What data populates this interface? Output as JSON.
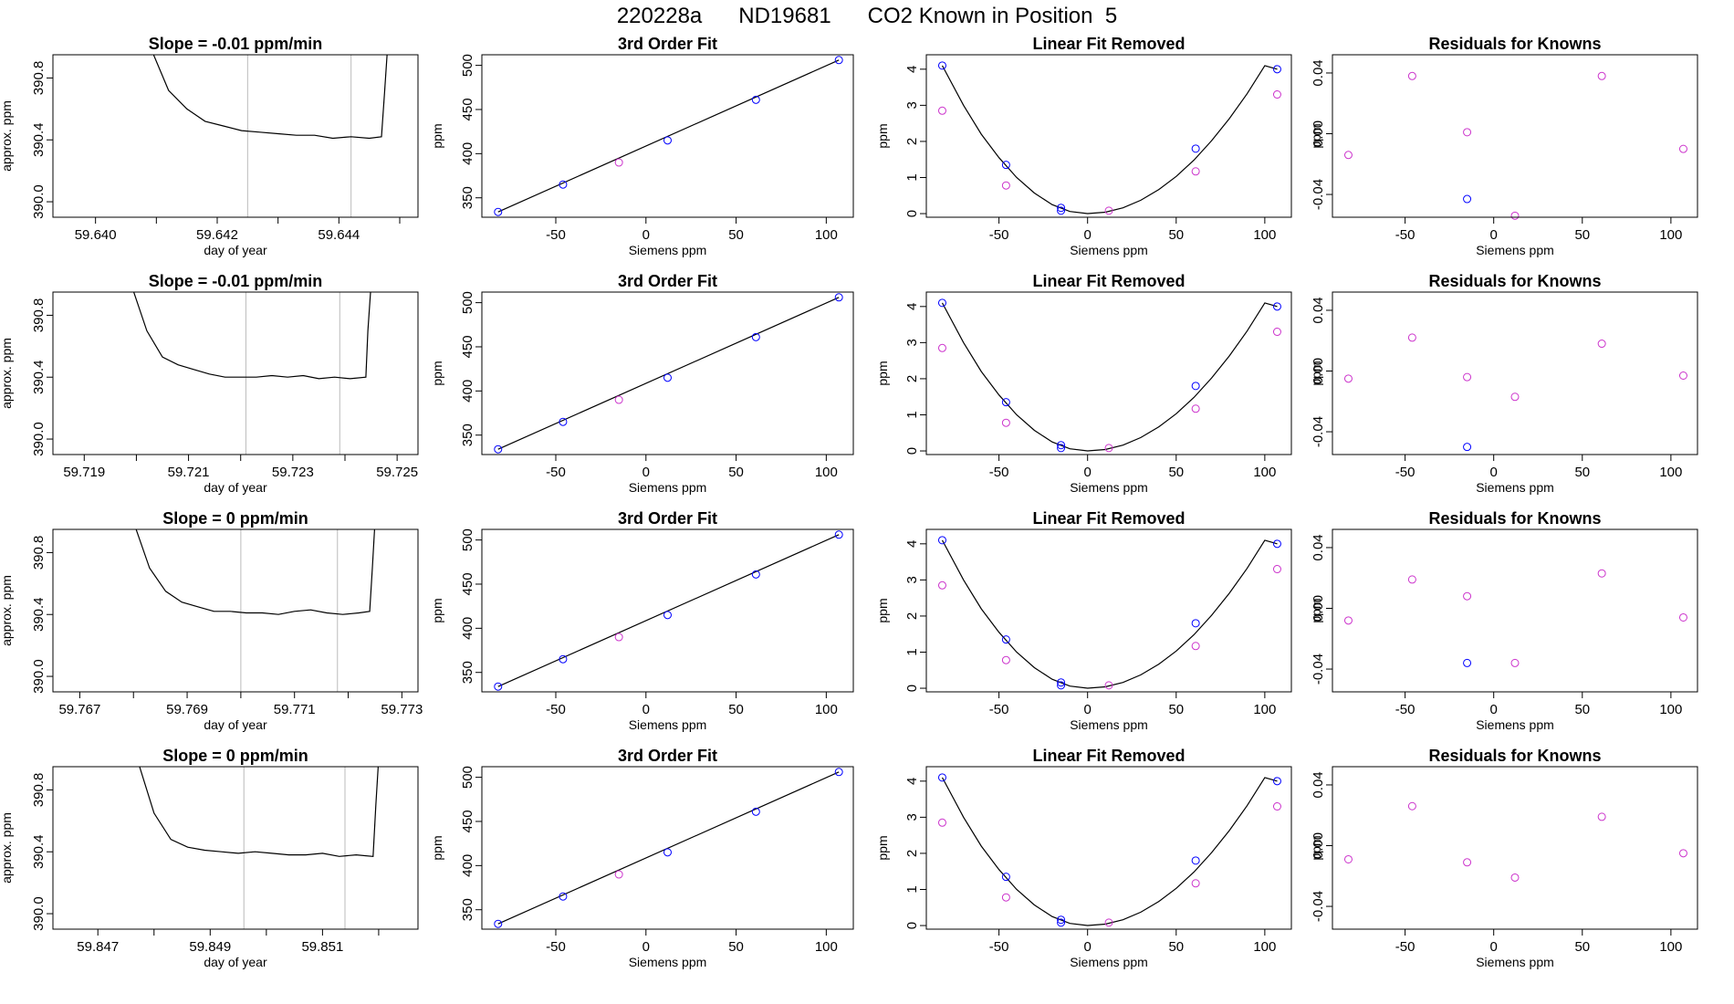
{
  "title": "220228a      ND19681      CO2 Known in Position  5",
  "labels": {
    "slope_prefix": "Slope = ",
    "slope_suffix": " ppm/min",
    "fit_title": "3rd Order Fit",
    "linear_title": "Linear Fit Removed",
    "resid_title": "Residuals for Knowns",
    "time_xlabel": "day of year",
    "time_ylabel": "approx. ppm",
    "siemens_xlabel": "Siemens ppm",
    "ppm_ylabel": "ppm"
  },
  "colors": {
    "line": "#000000",
    "known": "#0000ff",
    "unknown": "#cc33cc",
    "vline": "#bbbbbb"
  },
  "chart_data": [
    {
      "type": "line",
      "row": 0,
      "panel": "time",
      "slope": "-0.01",
      "x_range": [
        59.6393,
        59.6453
      ],
      "ylim": [
        389.9,
        390.95
      ],
      "xticks": [
        "59.640",
        "59.642",
        "59.644"
      ],
      "xtick_values": [
        59.64,
        59.642,
        59.644
      ],
      "minor_xticks": [
        59.641,
        59.643,
        59.645
      ],
      "yticks": [
        "390.0",
        "390.4",
        "390.8"
      ],
      "ytick_values": [
        390.0,
        390.4,
        390.8
      ],
      "vlines": [
        59.6425,
        59.6442
      ],
      "x": [
        59.6409,
        59.6412,
        59.6415,
        59.6418,
        59.6421,
        59.6424,
        59.6427,
        59.643,
        59.6433,
        59.6436,
        59.6439,
        59.6442,
        59.6445,
        59.6447,
        59.64475,
        59.6448
      ],
      "y": [
        391.0,
        390.72,
        390.6,
        390.52,
        390.49,
        390.46,
        390.45,
        390.44,
        390.43,
        390.43,
        390.41,
        390.42,
        390.41,
        390.42,
        390.7,
        391.0
      ]
    },
    {
      "type": "line",
      "row": 1,
      "panel": "time",
      "slope": "-0.01",
      "x_range": [
        59.7184,
        59.7254
      ],
      "ylim": [
        389.9,
        390.95
      ],
      "xticks": [
        "59.719",
        "59.721",
        "59.723",
        "59.725"
      ],
      "xtick_values": [
        59.719,
        59.721,
        59.723,
        59.725
      ],
      "minor_xticks": [
        59.72,
        59.722,
        59.724
      ],
      "yticks": [
        "390.0",
        "390.4",
        "390.8"
      ],
      "ytick_values": [
        390.0,
        390.4,
        390.8
      ],
      "vlines": [
        59.7221,
        59.7239
      ],
      "x": [
        59.7199,
        59.7202,
        59.7205,
        59.7208,
        59.7211,
        59.7214,
        59.7217,
        59.722,
        59.7223,
        59.7226,
        59.7229,
        59.7232,
        59.7235,
        59.7238,
        59.7241,
        59.7244,
        59.72444,
        59.7245
      ],
      "y": [
        391.0,
        390.7,
        390.53,
        390.48,
        390.45,
        390.42,
        390.4,
        390.4,
        390.4,
        390.41,
        390.4,
        390.41,
        390.39,
        390.4,
        390.39,
        390.4,
        390.7,
        391.0
      ]
    },
    {
      "type": "line",
      "row": 2,
      "panel": "time",
      "slope": "0",
      "x_range": [
        59.7665,
        59.7733
      ],
      "ylim": [
        389.9,
        390.95
      ],
      "xticks": [
        "59.767",
        "59.769",
        "59.771",
        "59.773"
      ],
      "xtick_values": [
        59.767,
        59.769,
        59.771,
        59.773
      ],
      "minor_xticks": [
        59.768,
        59.77,
        59.772
      ],
      "yticks": [
        "390.0",
        "390.4",
        "390.8"
      ],
      "ytick_values": [
        390.0,
        390.4,
        390.8
      ],
      "vlines": [
        59.77,
        59.7718
      ],
      "x": [
        59.768,
        59.7683,
        59.7686,
        59.7689,
        59.7692,
        59.7695,
        59.7698,
        59.7701,
        59.7704,
        59.7707,
        59.771,
        59.7713,
        59.7716,
        59.7719,
        59.7722,
        59.7724,
        59.77245,
        59.7725
      ],
      "y": [
        391.0,
        390.7,
        390.55,
        390.48,
        390.45,
        390.42,
        390.42,
        390.41,
        390.41,
        390.4,
        390.42,
        390.43,
        390.41,
        390.4,
        390.41,
        390.42,
        390.7,
        391.0
      ]
    },
    {
      "type": "line",
      "row": 3,
      "panel": "time",
      "slope": "0",
      "x_range": [
        59.8462,
        59.8527
      ],
      "ylim": [
        389.9,
        390.95
      ],
      "xticks": [
        "59.847",
        "59.849",
        "59.851"
      ],
      "xtick_values": [
        59.847,
        59.849,
        59.851
      ],
      "minor_xticks": [
        59.848,
        59.85,
        59.852
      ],
      "yticks": [
        "390.0",
        "390.4",
        "390.8"
      ],
      "ytick_values": [
        390.0,
        390.4,
        390.8
      ],
      "vlines": [
        59.8496,
        59.8514
      ],
      "x": [
        59.8477,
        59.848,
        59.8483,
        59.8486,
        59.8489,
        59.8492,
        59.8495,
        59.8498,
        59.8501,
        59.8504,
        59.8507,
        59.851,
        59.8513,
        59.8516,
        59.8519,
        59.85195,
        59.852
      ],
      "y": [
        391.0,
        390.65,
        390.48,
        390.43,
        390.41,
        390.4,
        390.39,
        390.4,
        390.39,
        390.38,
        390.38,
        390.39,
        390.37,
        390.38,
        390.37,
        390.7,
        391.0
      ]
    },
    {
      "type": "scatter",
      "panel": "fit",
      "rows": [
        0,
        1,
        2,
        3
      ],
      "xlim": [
        -91,
        115
      ],
      "ylim": [
        328,
        512
      ],
      "xticks": [
        -50,
        0,
        50,
        100
      ],
      "yticks": [
        350,
        400,
        450,
        500
      ],
      "line": {
        "x": [
          -82,
          107
        ],
        "y": [
          334,
          506
        ]
      },
      "known": {
        "x": [
          -82,
          -46,
          12,
          61,
          107
        ],
        "y": [
          334,
          365,
          415,
          461,
          506
        ]
      },
      "unknown": {
        "x": [
          -15
        ],
        "y": [
          390
        ]
      }
    },
    {
      "type": "scatter",
      "panel": "linear",
      "rows": [
        0,
        1,
        2,
        3
      ],
      "xlim": [
        -91,
        115
      ],
      "ylim": [
        -0.1,
        4.4
      ],
      "xticks": [
        -50,
        0,
        50,
        100
      ],
      "yticks": [
        0,
        1,
        2,
        3,
        4
      ],
      "curve": {
        "x": [
          -82,
          -70,
          -60,
          -50,
          -40,
          -30,
          -20,
          -10,
          0,
          10,
          20,
          30,
          40,
          50,
          60,
          70,
          80,
          90,
          100,
          107
        ],
        "y": [
          4.1,
          3.0,
          2.2,
          1.55,
          1.0,
          0.57,
          0.25,
          0.06,
          0.0,
          0.04,
          0.16,
          0.37,
          0.66,
          1.03,
          1.48,
          2.02,
          2.63,
          3.32,
          4.1,
          4.0
        ]
      },
      "known": {
        "x": [
          -82,
          -46,
          -15,
          -15,
          61,
          107
        ],
        "y": [
          4.1,
          1.35,
          0.08,
          0.16,
          1.8,
          4.0
        ]
      },
      "unknown": {
        "x": [
          -82,
          -46,
          12,
          61,
          107
        ],
        "y": [
          2.85,
          0.78,
          0.08,
          1.17,
          3.3
        ]
      }
    },
    {
      "type": "scatter",
      "panel": "resid",
      "row": 0,
      "xlim": [
        -91,
        115
      ],
      "ylim": [
        -0.055,
        0.052
      ],
      "xticks": [
        -50,
        0,
        50,
        100
      ],
      "yticks": [
        "-0.04",
        "0.00",
        "0.04"
      ],
      "ytick_values": [
        -0.04,
        0.0,
        0.04
      ],
      "known": {
        "x": [
          -15
        ],
        "y": [
          -0.043
        ]
      },
      "unknown": {
        "x": [
          -82,
          -46,
          -15,
          12,
          61,
          107
        ],
        "y": [
          -0.014,
          0.038,
          0.001,
          -0.054,
          0.038,
          -0.01
        ]
      }
    },
    {
      "type": "scatter",
      "panel": "resid",
      "row": 1,
      "xlim": [
        -91,
        115
      ],
      "ylim": [
        -0.055,
        0.052
      ],
      "xticks": [
        -50,
        0,
        50,
        100
      ],
      "yticks": [
        "-0.04",
        "0.00",
        "0.04"
      ],
      "ytick_values": [
        -0.04,
        0.0,
        0.04
      ],
      "known": {
        "x": [
          -15
        ],
        "y": [
          -0.05
        ]
      },
      "unknown": {
        "x": [
          -82,
          -46,
          -15,
          12,
          61,
          107
        ],
        "y": [
          -0.005,
          0.022,
          -0.004,
          -0.017,
          0.018,
          -0.003
        ]
      }
    },
    {
      "type": "scatter",
      "panel": "resid",
      "row": 2,
      "xlim": [
        -91,
        115
      ],
      "ylim": [
        -0.055,
        0.052
      ],
      "xticks": [
        -50,
        0,
        50,
        100
      ],
      "yticks": [
        "-0.04",
        "0.00",
        "0.04"
      ],
      "ytick_values": [
        -0.04,
        0.0,
        0.04
      ],
      "known": {
        "x": [
          -15
        ],
        "y": [
          -0.036
        ]
      },
      "unknown": {
        "x": [
          -82,
          -46,
          -15,
          12,
          61,
          107
        ],
        "y": [
          -0.008,
          0.019,
          0.008,
          -0.036,
          0.023,
          -0.006
        ]
      }
    },
    {
      "type": "scatter",
      "panel": "resid",
      "row": 3,
      "xlim": [
        -91,
        115
      ],
      "ylim": [
        -0.055,
        0.052
      ],
      "xticks": [
        -50,
        0,
        50,
        100
      ],
      "yticks": [
        "-0.04",
        "0.00",
        "0.04"
      ],
      "ytick_values": [
        -0.04,
        0.0,
        0.04
      ],
      "known": {
        "x": [],
        "y": []
      },
      "unknown": {
        "x": [
          -82,
          -46,
          -15,
          12,
          61,
          107
        ],
        "y": [
          -0.009,
          0.026,
          -0.011,
          -0.021,
          0.019,
          -0.005
        ]
      }
    }
  ]
}
